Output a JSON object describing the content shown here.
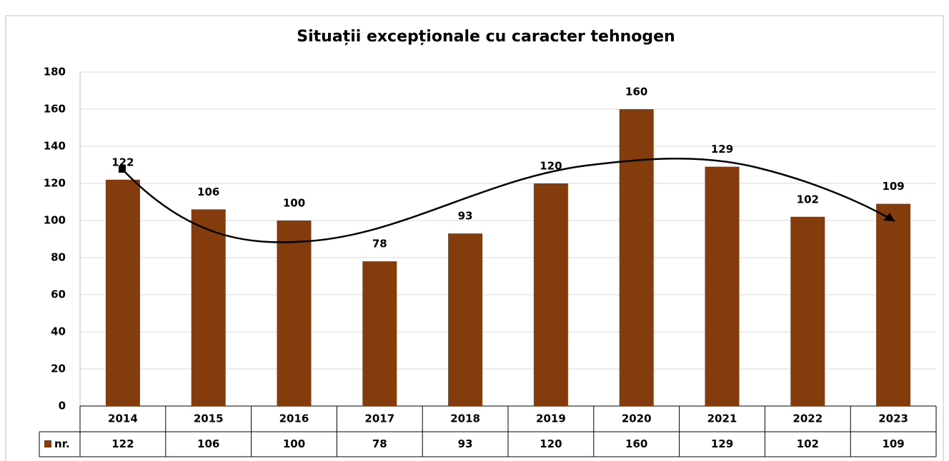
{
  "chart_data": {
    "type": "bar",
    "title": "Situații excepționale cu caracter tehnogen",
    "categories": [
      "2014",
      "2015",
      "2016",
      "2017",
      "2018",
      "2019",
      "2020",
      "2021",
      "2022",
      "2023"
    ],
    "series": [
      {
        "name": "nr.",
        "color": "#843c0c",
        "values": [
          122,
          106,
          100,
          78,
          93,
          120,
          160,
          129,
          102,
          109
        ]
      }
    ],
    "ylim": [
      0,
      180
    ],
    "yticks": [
      0,
      20,
      40,
      60,
      80,
      100,
      120,
      140,
      160,
      180
    ],
    "grid": true
  }
}
